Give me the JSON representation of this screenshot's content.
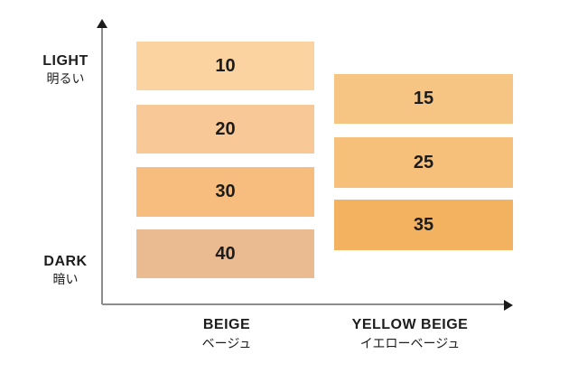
{
  "chart_data": {
    "type": "heatmap",
    "title": "",
    "y_axis": {
      "top_label": "LIGHT",
      "top_label_ja": "明るい",
      "bottom_label": "DARK",
      "bottom_label_ja": "暗い"
    },
    "columns": [
      {
        "label": "BEIGE",
        "label_ja": "ベージュ",
        "shades": [
          {
            "value": "10",
            "color": "#FAD3A0"
          },
          {
            "value": "20",
            "color": "#F8C997"
          },
          {
            "value": "30",
            "color": "#F6BD7E"
          },
          {
            "value": "40",
            "color": "#EABB90"
          }
        ]
      },
      {
        "label": "YELLOW BEIGE",
        "label_ja": "イエローベージュ",
        "shades": [
          {
            "value": "15",
            "color": "#F6C483"
          },
          {
            "value": "25",
            "color": "#F6C07B"
          },
          {
            "value": "35",
            "color": "#F3B260"
          }
        ]
      }
    ],
    "layout": {
      "axis_line_color": "#8c8c8c",
      "arrowhead_color": "#1a1a1a",
      "text_color": "#1d1d1d",
      "background": "#ffffff",
      "grid": false,
      "legend_position": "none"
    }
  }
}
